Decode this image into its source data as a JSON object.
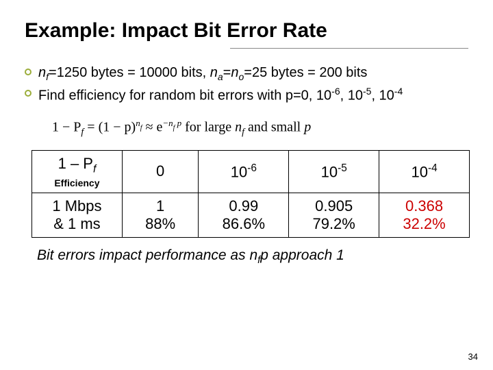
{
  "title": "Example:  Impact Bit Error Rate",
  "line1": {
    "nf_label": "n",
    "nf_sub": "f",
    "nf_expr": "=1250 bytes = 10000 bits, ",
    "na_label": "n",
    "na_sub": "a",
    "eq": "=",
    "no_label": "n",
    "no_sub": "o",
    "no_expr": "=25 bytes = 200 bits"
  },
  "line2_pre": "Find efficiency for random bit errors with p=0, 10",
  "sup6": "-6",
  "sup5": "-5",
  "sup4": "-4",
  "formula": {
    "lhs": "1 − P",
    "lhs_sub": "f",
    "mid": " = (1 − p)",
    "exp1a": "n",
    "exp1b": "f",
    "approx": " ≈ e",
    "exp2": "−n",
    "exp2b": "f",
    "exp2c": " p",
    "tail": "  for large ",
    "tail_nf": "n",
    "tail_nf_sub": "f",
    "tail2": " and small ",
    "tail_p": "p"
  },
  "table": {
    "header": {
      "pf": "1 – P",
      "pf_sub": "f",
      "eff": "Efficiency",
      "c0": "0",
      "c1": "10",
      "c1s": "-6",
      "c2": "10",
      "c2s": "-5",
      "c3": "10",
      "c3s": "-4"
    },
    "row": {
      "label1": "1 Mbps",
      "label2": "& 1 ms",
      "v0a": "1",
      "v0b": "88%",
      "v1a": "0.99",
      "v1b": "86.6%",
      "v2a": "0.905",
      "v2b": "79.2%",
      "v3a": "0.368",
      "v3b": "32.2%"
    }
  },
  "conclusion": {
    "pre": "Bit errors impact performance as ",
    "nf": "n",
    "nf_sub": "f",
    "post": "p approach 1"
  },
  "page": "34"
}
